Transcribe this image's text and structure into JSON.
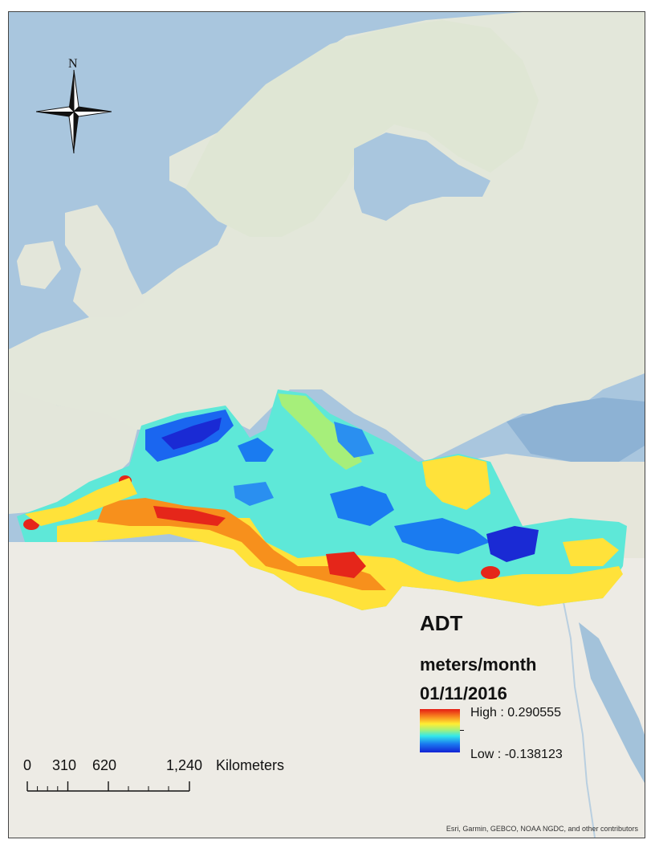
{
  "legend": {
    "title": "ADT",
    "units": "meters/month",
    "date": "01/11/2016",
    "high_label": "High : 0.290555",
    "low_label": "Low : -0.138123",
    "high_value": 0.290555,
    "low_value": -0.138123,
    "ramp_colors": [
      "#e51c14",
      "#f88b20",
      "#ffee33",
      "#a7f07a",
      "#33e8ea",
      "#1a7bf0",
      "#1322d4"
    ]
  },
  "scale_bar": {
    "tick_labels": [
      "0",
      "310",
      "620",
      "1,240"
    ],
    "unit": "Kilometers"
  },
  "north_arrow": {
    "label": "N",
    "icon": "north-arrow-icon"
  },
  "attribution": "Esri, Garmin, GEBCO, NOAA NGDC, and other contributors",
  "colors": {
    "sea": "#a8c4dc",
    "land": "#e6e8dc",
    "desert": "#eeece6"
  }
}
